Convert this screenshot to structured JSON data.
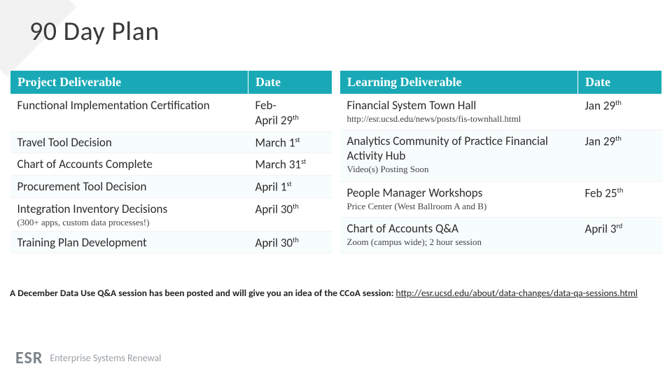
{
  "title": "90 Day Plan",
  "left_table": {
    "headers": [
      "Project Deliverable",
      "Date"
    ],
    "rows": [
      {
        "name": "Functional Implementation Certification",
        "sub": "",
        "date_html": "Feb-<br>April 29<sup>th</sup>"
      },
      {
        "name": "Travel Tool Decision",
        "sub": "",
        "date_html": "March 1<sup>st</sup>"
      },
      {
        "name": "Chart of Accounts Complete",
        "sub": "",
        "date_html": "March 31<sup>st</sup>"
      },
      {
        "name": "Procurement Tool Decision",
        "sub": "",
        "date_html": "April 1<sup>st</sup>"
      },
      {
        "name": "Integration Inventory Decisions",
        "sub": "(300+ apps, custom data processes!)",
        "date_html": "April 30<sup>th</sup>"
      },
      {
        "name": "Training Plan Development",
        "sub": "",
        "date_html": "April 30<sup>th</sup>"
      }
    ]
  },
  "right_table": {
    "headers": [
      "Learning Deliverable",
      "Date"
    ],
    "rows": [
      {
        "name": "Financial System Town Hall",
        "sub": "http://esr.ucsd.edu/news/posts/fis-townhall.html",
        "date_html": "Jan 29<sup>th</sup>"
      },
      {
        "name": "Analytics Community of Practice Financial Activity Hub",
        "sub": "Video(s) Posting Soon",
        "date_html": "Jan 29<sup>th</sup>"
      },
      {
        "name": "People Manager Workshops",
        "sub": "Price Center (West Ballroom A and B)",
        "date_html": "Feb 25<sup>th</sup>"
      },
      {
        "name": "Chart of Accounts Q&A",
        "sub": "Zoom (campus wide); 2 hour session",
        "date_html": "April 3<sup>rd</sup>"
      }
    ]
  },
  "footnote": {
    "text": "A December Data Use Q&A session has been posted and will give you an idea of the CCoA session: ",
    "link": "http://esr.ucsd.edu/about/data-changes/data-qa-sessions.html"
  },
  "footer": {
    "mark": "ESR",
    "text": "Enterprise Systems Renewal"
  },
  "colors": {
    "header_bg": "#19a9b6",
    "header_fg": "#ffffff",
    "title": "#3a3a3a"
  }
}
